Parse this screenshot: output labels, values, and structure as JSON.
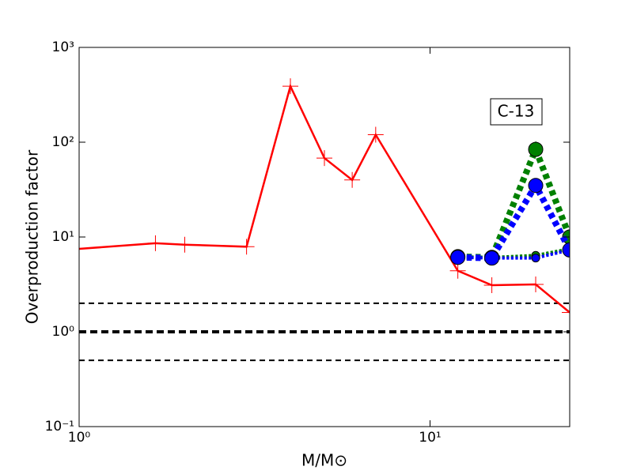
{
  "chart_data": {
    "type": "line",
    "xlabel": "M/M⊙",
    "ylabel": "Overproduction factor",
    "annotation": "C-13",
    "xscale": "log",
    "yscale": "log",
    "xlim": [
      1,
      25
    ],
    "ylim": [
      0.1,
      1000
    ],
    "xticks": [
      {
        "value": 1,
        "label": "10⁰"
      },
      {
        "value": 10,
        "label": "10¹"
      }
    ],
    "yticks": [
      {
        "value": 0.1,
        "label": "10⁻¹"
      },
      {
        "value": 1,
        "label": "10⁰"
      },
      {
        "value": 10,
        "label": "10¹"
      },
      {
        "value": 100,
        "label": "10²"
      },
      {
        "value": 1000,
        "label": "10³"
      }
    ],
    "hlines": [
      {
        "value": 2,
        "width": 2
      },
      {
        "value": 1,
        "width": 4
      },
      {
        "value": 0.5,
        "width": 2
      }
    ],
    "series": [
      {
        "color": "#ff0000",
        "linestyle": "solid",
        "width": 2.5,
        "marker": "+",
        "markersize": 10,
        "x": [
          1,
          1.65,
          2,
          3,
          4,
          5,
          6,
          7,
          12,
          15,
          20,
          25
        ],
        "values": [
          7.5,
          8.6,
          8.3,
          7.9,
          390,
          68,
          40,
          120,
          4.4,
          3.1,
          3.16,
          1.6
        ]
      },
      {
        "color": "#008000",
        "linestyle": "dotted",
        "width": 4,
        "marker": "o",
        "markersize": 5,
        "x": [
          12,
          15,
          20,
          25
        ],
        "values": [
          6.2,
          6.1,
          6.4,
          7.5
        ]
      },
      {
        "color": "#0000ff",
        "linestyle": "dotted",
        "width": 4,
        "marker": "o",
        "markersize": 5,
        "x": [
          12,
          15,
          20,
          25
        ],
        "values": [
          6.1,
          6.0,
          6.0,
          7.3
        ]
      },
      {
        "color": "#008000",
        "linestyle": "dotted",
        "width": 8,
        "marker": "o",
        "markersize": 9,
        "x": [
          12,
          15,
          20,
          25
        ],
        "values": [
          6.2,
          6.1,
          84,
          10
        ]
      },
      {
        "color": "#0000ff",
        "linestyle": "dotted",
        "width": 8,
        "marker": "o",
        "markersize": 9,
        "x": [
          12,
          15,
          20,
          25
        ],
        "values": [
          6.1,
          6.0,
          35,
          7.3
        ]
      }
    ]
  }
}
